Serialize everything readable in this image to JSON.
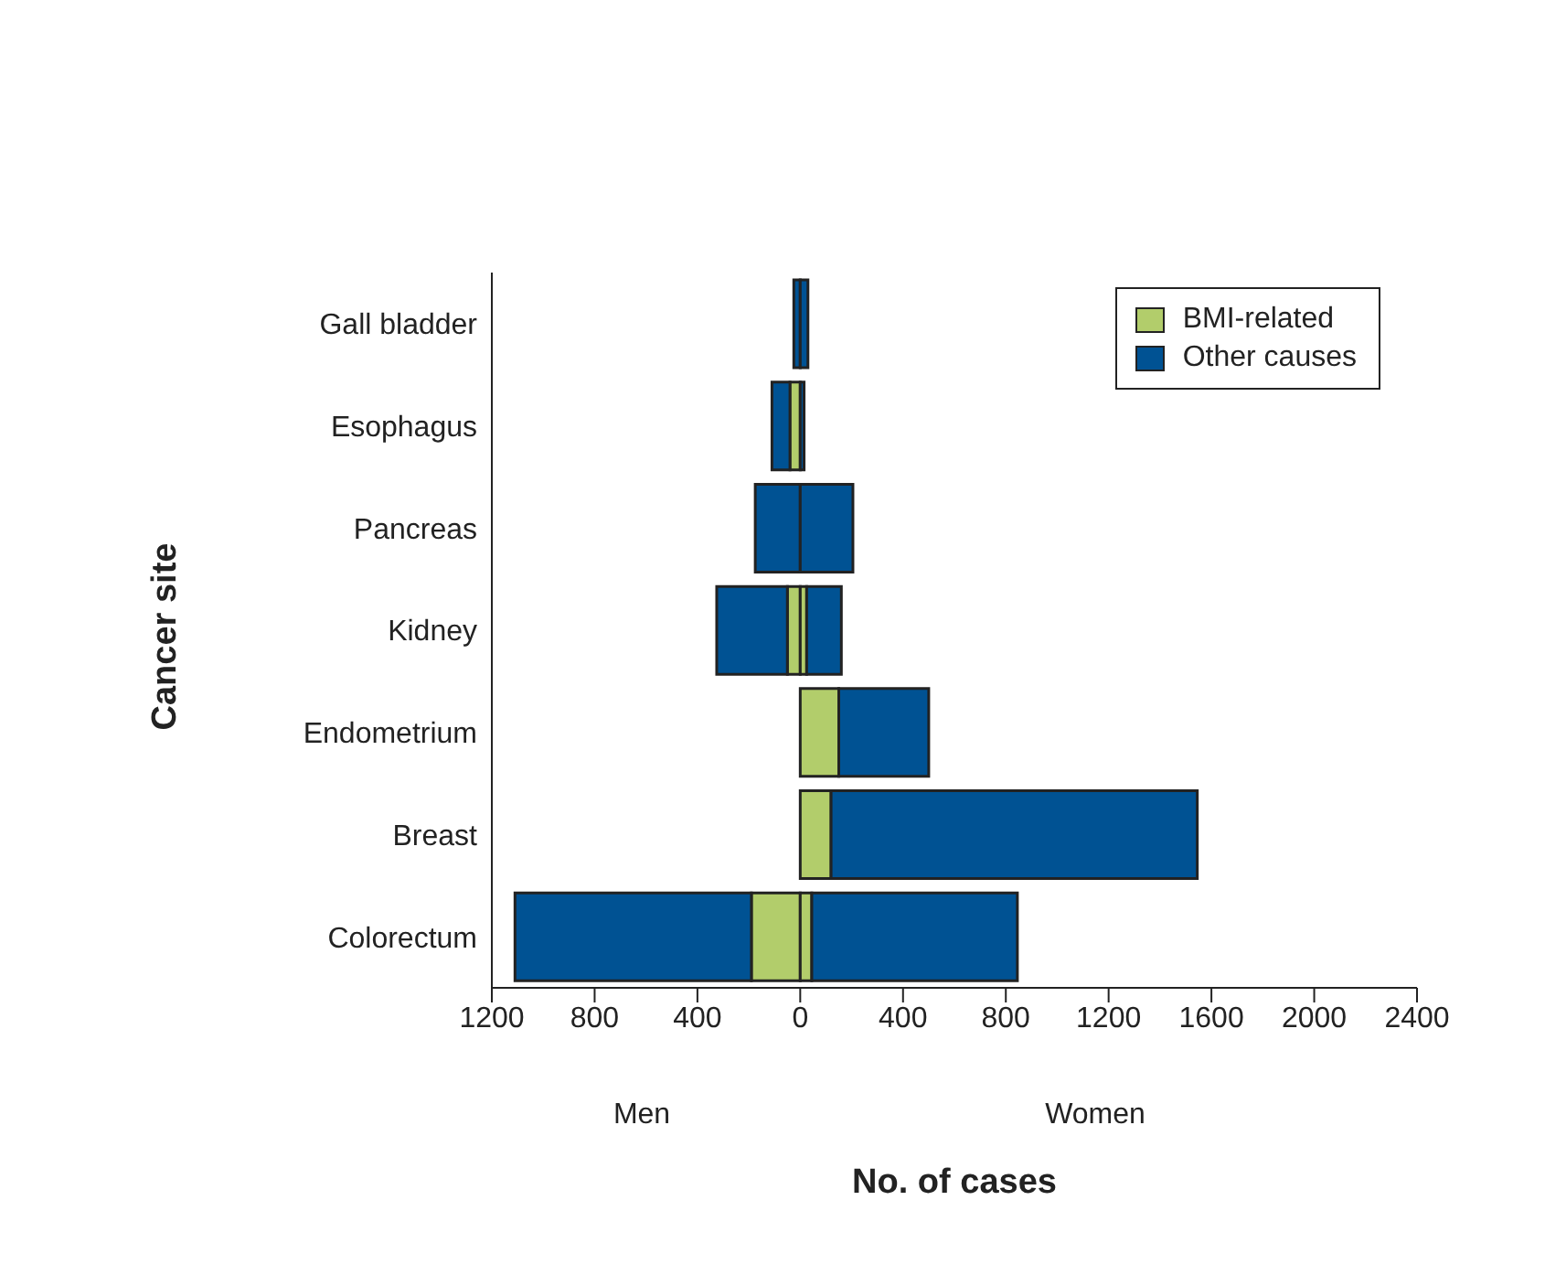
{
  "chart_data": {
    "type": "bar",
    "orientation": "horizontal",
    "stacked": true,
    "xlabel": "No. of cases",
    "ylabel": "Cancer site",
    "categories": [
      "Gall bladder",
      "Esophagus",
      "Pancreas",
      "Kidney",
      "Endometrium",
      "Breast",
      "Colorectum"
    ],
    "series": [
      {
        "name": "BMI-related",
        "color": "#b2cd6b",
        "values": [
          null,
          -40,
          0,
          -50,
          null,
          null,
          -190
        ]
      },
      {
        "name": "Other causes",
        "color": "#005293",
        "values": [
          -25,
          -70,
          -175,
          -275,
          null,
          null,
          -920
        ]
      },
      {
        "color": "#b2cd6b",
        "values": [
          null,
          null,
          0,
          25,
          150,
          120,
          45
        ]
      },
      {
        "color": "#005293",
        "values": [
          30,
          15,
          205,
          135,
          350,
          1425,
          800
        ]
      }
    ],
    "xlim": [
      -1200,
      2400
    ],
    "xticks": [
      {
        "value": -1200,
        "label": "1200"
      },
      {
        "value": -800,
        "label": "800"
      },
      {
        "value": -400,
        "label": "400"
      },
      0,
      400,
      800,
      1200,
      1600,
      2000,
      2400
    ],
    "annotations": [
      "Men",
      "Women"
    ],
    "legend": "top right"
  }
}
